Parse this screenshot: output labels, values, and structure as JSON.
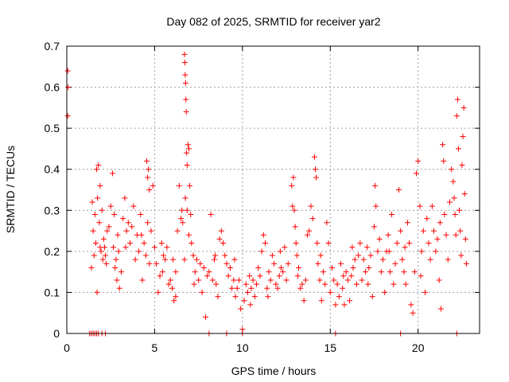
{
  "chart_data": {
    "type": "scatter",
    "title": "Day 082 of 2025, SRMTID for receiver yar2",
    "xlabel": "GPS time / hours",
    "ylabel": "SRMTID / TECUs",
    "xlim": [
      0,
      23.5
    ],
    "ylim": [
      0,
      0.7
    ],
    "xticks": [
      0,
      5,
      10,
      15,
      20
    ],
    "yticks": [
      0,
      0.1,
      0.2,
      0.3,
      0.4,
      0.5,
      0.6,
      0.7
    ],
    "grid": true,
    "marker": "+",
    "series": [
      {
        "name": "SRMTID",
        "color": "#ff0000",
        "points": [
          [
            0.05,
            0.64
          ],
          [
            0.05,
            0.53
          ],
          [
            0.07,
            0.6
          ],
          [
            1.3,
            0
          ],
          [
            1.4,
            0
          ],
          [
            1.5,
            0
          ],
          [
            1.6,
            0
          ],
          [
            1.7,
            0
          ],
          [
            1.8,
            0
          ],
          [
            2.0,
            0
          ],
          [
            2.2,
            0
          ],
          [
            1.4,
            0.16
          ],
          [
            1.45,
            0.32
          ],
          [
            1.5,
            0.25
          ],
          [
            1.55,
            0.19
          ],
          [
            1.6,
            0.29
          ],
          [
            1.65,
            0.22
          ],
          [
            1.7,
            0.4
          ],
          [
            1.75,
            0.33
          ],
          [
            1.8,
            0.41
          ],
          [
            1.85,
            0.27
          ],
          [
            1.9,
            0.36
          ],
          [
            1.95,
            0.2
          ],
          [
            2.0,
            0.3
          ],
          [
            2.05,
            0.18
          ],
          [
            2.1,
            0.23
          ],
          [
            2.15,
            0.21
          ],
          [
            2.2,
            0.19
          ],
          [
            1.72,
            0.1
          ],
          [
            1.9,
            0.21
          ],
          [
            2.25,
            0.17
          ],
          [
            2.4,
            0.26
          ],
          [
            2.5,
            0.31
          ],
          [
            2.6,
            0.39
          ],
          [
            2.65,
            0.21
          ],
          [
            2.7,
            0.29
          ],
          [
            2.75,
            0.16
          ],
          [
            2.8,
            0.18
          ],
          [
            2.85,
            0.13
          ],
          [
            2.9,
            0.24
          ],
          [
            2.95,
            0.2
          ],
          [
            3.0,
            0.11
          ],
          [
            3.1,
            0.15
          ],
          [
            3.2,
            0.28
          ],
          [
            3.3,
            0.33
          ],
          [
            3.4,
            0.25
          ],
          [
            3.5,
            0.27
          ],
          [
            3.6,
            0.22
          ],
          [
            3.7,
            0.26
          ],
          [
            3.8,
            0.31
          ],
          [
            3.9,
            0.18
          ],
          [
            4.0,
            0.24
          ],
          [
            4.1,
            0.2
          ],
          [
            4.2,
            0.29
          ],
          [
            4.3,
            0.13
          ],
          [
            4.4,
            0.22
          ],
          [
            4.5,
            0.19
          ],
          [
            4.6,
            0.27
          ],
          [
            4.7,
            0.17
          ],
          [
            4.55,
            0.42
          ],
          [
            4.6,
            0.38
          ],
          [
            4.65,
            0.4
          ],
          [
            4.7,
            0.35
          ],
          [
            4.8,
            0.25
          ],
          [
            4.9,
            0.36
          ],
          [
            5.0,
            0.21
          ],
          [
            5.1,
            0.17
          ],
          [
            5.2,
            0.1
          ],
          [
            5.3,
            0.14
          ],
          [
            5.4,
            0.22
          ],
          [
            5.5,
            0.19
          ],
          [
            5.6,
            0.18
          ],
          [
            5.7,
            0.21
          ],
          [
            5.8,
            0.12
          ],
          [
            5.9,
            0.13
          ],
          [
            6.0,
            0.11
          ],
          [
            6.1,
            0.08
          ],
          [
            6.2,
            0.15
          ],
          [
            6.3,
            0.25
          ],
          [
            6.4,
            0.36
          ],
          [
            6.5,
            0.28
          ],
          [
            6.55,
            0.3
          ],
          [
            6.6,
            0.27
          ],
          [
            6.2,
            0.09
          ],
          [
            6.7,
            0.68
          ],
          [
            6.72,
            0.66
          ],
          [
            6.74,
            0.63
          ],
          [
            6.76,
            0.61
          ],
          [
            6.78,
            0.57
          ],
          [
            6.8,
            0.54
          ],
          [
            6.82,
            0.44
          ],
          [
            6.85,
            0.41
          ],
          [
            6.9,
            0.46
          ],
          [
            6.95,
            0.45
          ],
          [
            7.0,
            0.36
          ],
          [
            7.05,
            0.29
          ],
          [
            7.1,
            0.22
          ],
          [
            6.75,
            0.33
          ],
          [
            6.85,
            0.3
          ],
          [
            6.95,
            0.24
          ],
          [
            6.7,
            0.18
          ],
          [
            7.2,
            0.19
          ],
          [
            7.3,
            0.15
          ],
          [
            7.4,
            0.18
          ],
          [
            7.5,
            0.13
          ],
          [
            7.6,
            0.17
          ],
          [
            7.7,
            0.1
          ],
          [
            7.8,
            0.16
          ],
          [
            7.9,
            0.04
          ],
          [
            8.0,
            0.14
          ],
          [
            8.1,
            0.15
          ],
          [
            8.2,
            0.29
          ],
          [
            8.3,
            0.13
          ],
          [
            8.4,
            0.18
          ],
          [
            8.5,
            0.12
          ],
          [
            8.6,
            0.09
          ],
          [
            8.7,
            0.23
          ],
          [
            8.8,
            0.25
          ],
          [
            8.9,
            0.22
          ],
          [
            9.0,
            0.19
          ],
          [
            9.1,
            0.17
          ],
          [
            9.2,
            0.14
          ],
          [
            9.3,
            0.16
          ],
          [
            9.4,
            0.11
          ],
          [
            8.1,
            0
          ],
          [
            9.1,
            0
          ],
          [
            9.5,
            0.13
          ],
          [
            9.6,
            0.09
          ],
          [
            9.7,
            0.11
          ],
          [
            9.8,
            0.13
          ],
          [
            9.9,
            0.06
          ],
          [
            10.0,
            0.01
          ],
          [
            10.0,
            0
          ],
          [
            10.1,
            0.08
          ],
          [
            10.2,
            0.12
          ],
          [
            10.3,
            0.1
          ],
          [
            10.4,
            0.14
          ],
          [
            10.5,
            0.11
          ],
          [
            10.6,
            0.13
          ],
          [
            10.7,
            0.09
          ],
          [
            10.8,
            0.12
          ],
          [
            10.9,
            0.16
          ],
          [
            11.0,
            0.14
          ],
          [
            11.1,
            0.2
          ],
          [
            11.2,
            0.24
          ],
          [
            11.3,
            0.22
          ],
          [
            11.4,
            0.11
          ],
          [
            11.5,
            0.15
          ],
          [
            11.6,
            0.13
          ],
          [
            11.7,
            0.19
          ],
          [
            11.8,
            0.17
          ],
          [
            11.9,
            0.12
          ],
          [
            12.0,
            0.11
          ],
          [
            12.1,
            0.14
          ],
          [
            12.2,
            0.16
          ],
          [
            12.3,
            0.15
          ],
          [
            12.4,
            0.21
          ],
          [
            12.5,
            0.13
          ],
          [
            12.6,
            0.17
          ],
          [
            12.8,
            0.36
          ],
          [
            12.85,
            0.31
          ],
          [
            12.9,
            0.38
          ],
          [
            12.95,
            0.3
          ],
          [
            13.0,
            0.26
          ],
          [
            13.05,
            0.22
          ],
          [
            13.1,
            0.19
          ],
          [
            13.2,
            0.16
          ],
          [
            13.3,
            0.11
          ],
          [
            13.4,
            0.12
          ],
          [
            13.5,
            0.08
          ],
          [
            13.6,
            0.13
          ],
          [
            13.7,
            0.24
          ],
          [
            13.8,
            0.25
          ],
          [
            13.9,
            0.31
          ],
          [
            14.0,
            0.28
          ],
          [
            14.1,
            0.43
          ],
          [
            14.15,
            0.4
          ],
          [
            14.2,
            0.38
          ],
          [
            14.25,
            0.22
          ],
          [
            14.3,
            0.17
          ],
          [
            14.4,
            0.13
          ],
          [
            14.5,
            0.08
          ],
          [
            14.6,
            0.15
          ],
          [
            14.7,
            0.12
          ],
          [
            14.8,
            0.27
          ],
          [
            14.9,
            0.22
          ],
          [
            15.0,
            0.1
          ],
          [
            15.1,
            0.16
          ],
          [
            15.2,
            0.13
          ],
          [
            15.3,
            0.07
          ],
          [
            15.4,
            0.12
          ],
          [
            15.5,
            0.09
          ],
          [
            15.6,
            0.17
          ],
          [
            15.7,
            0.11
          ],
          [
            15.8,
            0.07
          ],
          [
            15.9,
            0.15
          ],
          [
            16.0,
            0.13
          ],
          [
            16.1,
            0.08
          ],
          [
            16.2,
            0.14
          ],
          [
            16.3,
            0.16
          ],
          [
            16.4,
            0.18
          ],
          [
            16.5,
            0.12
          ],
          [
            16.6,
            0.19
          ],
          [
            16.7,
            0.22
          ],
          [
            16.8,
            0.13
          ],
          [
            16.9,
            0.18
          ],
          [
            17.0,
            0.15
          ],
          [
            17.1,
            0.21
          ],
          [
            17.2,
            0.16
          ],
          [
            17.3,
            0.19
          ],
          [
            17.4,
            0.09
          ],
          [
            17.5,
            0.26
          ],
          [
            17.55,
            0.36
          ],
          [
            17.6,
            0.31
          ],
          [
            17.7,
            0.2
          ],
          [
            17.8,
            0.23
          ],
          [
            17.9,
            0.15
          ],
          [
            15.3,
            0
          ],
          [
            18.0,
            0.18
          ],
          [
            18.1,
            0.1
          ],
          [
            18.2,
            0.2
          ],
          [
            18.3,
            0.24
          ],
          [
            18.4,
            0.15
          ],
          [
            18.5,
            0.29
          ],
          [
            18.6,
            0.12
          ],
          [
            18.7,
            0.17
          ],
          [
            18.8,
            0.22
          ],
          [
            18.9,
            0.35
          ],
          [
            19.0,
            0.25
          ],
          [
            19.1,
            0.18
          ],
          [
            19.2,
            0.15
          ],
          [
            19.3,
            0.12
          ],
          [
            19.4,
            0.27
          ],
          [
            19.5,
            0.22
          ],
          [
            19.6,
            0.07
          ],
          [
            19.7,
            0.05
          ],
          [
            19.8,
            0.15
          ],
          [
            19.9,
            0.39
          ],
          [
            20.0,
            0.42
          ],
          [
            20.1,
            0.31
          ],
          [
            20.2,
            0.2
          ],
          [
            20.3,
            0.25
          ],
          [
            20.4,
            0.1
          ],
          [
            20.5,
            0.28
          ],
          [
            20.6,
            0.22
          ],
          [
            20.7,
            0.18
          ],
          [
            20.8,
            0.31
          ],
          [
            20.9,
            0.25
          ],
          [
            19.0,
            0
          ],
          [
            21.0,
            0.2
          ],
          [
            21.1,
            0.23
          ],
          [
            21.2,
            0.13
          ],
          [
            21.3,
            0.06
          ],
          [
            21.4,
            0.46
          ],
          [
            21.45,
            0.42
          ],
          [
            21.5,
            0.29
          ],
          [
            21.6,
            0.24
          ],
          [
            21.7,
            0.18
          ],
          [
            21.8,
            0.32
          ],
          [
            21.9,
            0.4
          ],
          [
            22.0,
            0.37
          ],
          [
            22.1,
            0.29
          ],
          [
            22.15,
            0.24
          ],
          [
            22.2,
            0.53
          ],
          [
            22.25,
            0.57
          ],
          [
            22.3,
            0.45
          ],
          [
            22.35,
            0.3
          ],
          [
            22.4,
            0.25
          ],
          [
            22.5,
            0.41
          ],
          [
            22.55,
            0.48
          ],
          [
            22.6,
            0.55
          ],
          [
            22.65,
            0.34
          ],
          [
            22.7,
            0.23
          ],
          [
            22.75,
            0.17
          ],
          [
            22.2,
            0
          ],
          [
            2.3,
            0.25
          ],
          [
            3.35,
            0.21
          ],
          [
            4.25,
            0.24
          ],
          [
            5.45,
            0.15
          ],
          [
            6.05,
            0.18
          ],
          [
            7.25,
            0.12
          ],
          [
            8.45,
            0.19
          ],
          [
            9.55,
            0.18
          ],
          [
            10.45,
            0.07
          ],
          [
            11.45,
            0.09
          ],
          [
            12.15,
            0.2
          ],
          [
            13.15,
            0.14
          ],
          [
            14.45,
            0.19
          ],
          [
            15.75,
            0.14
          ],
          [
            16.25,
            0.21
          ],
          [
            17.15,
            0.12
          ],
          [
            18.35,
            0.2
          ],
          [
            19.25,
            0.21
          ],
          [
            20.15,
            0.14
          ],
          [
            21.25,
            0.27
          ],
          [
            22.05,
            0.33
          ],
          [
            22.45,
            0.19
          ]
        ]
      }
    ]
  }
}
